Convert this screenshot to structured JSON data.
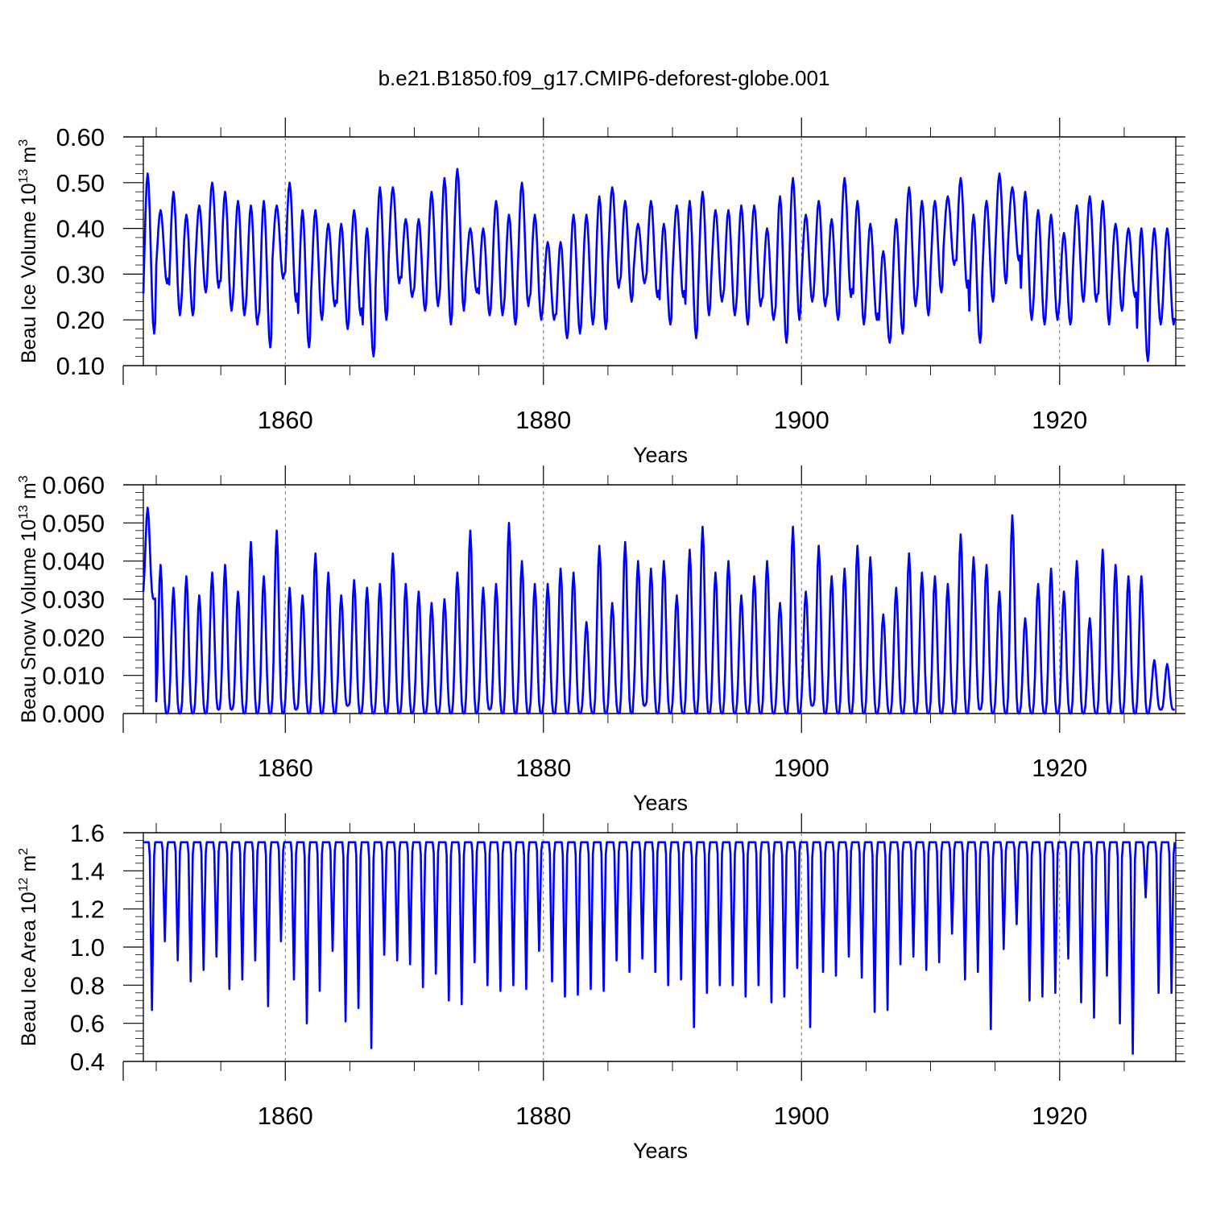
{
  "title": "b.e21.B1850.f09_g17.CMIP6-deforest-globe.001",
  "line_color": "#0000ff",
  "chart_data": [
    {
      "type": "line",
      "name": "ice-volume",
      "ylabel_main": "Beau Ice Volume 10",
      "ylabel_exp": "13",
      "ylabel_unit": " m",
      "ylabel_unit_exp": "3",
      "xlabel": "Years",
      "xlim": [
        1849.0,
        1929.0
      ],
      "ylim": [
        0.1,
        0.6
      ],
      "yticks": [
        0.1,
        0.2,
        0.3,
        0.4,
        0.5,
        0.6
      ],
      "ytick_labels": [
        "0.10",
        "0.20",
        "0.30",
        "0.40",
        "0.50",
        "0.60"
      ],
      "xticks": [
        1860,
        1880,
        1900,
        1920
      ],
      "xtick_labels": [
        "1860",
        "1880",
        "1900",
        "1920"
      ],
      "start_year": 1849.0,
      "annual_max": [
        0.52,
        0.44,
        0.48,
        0.43,
        0.45,
        0.5,
        0.48,
        0.46,
        0.45,
        0.46,
        0.45,
        0.5,
        0.44,
        0.44,
        0.41,
        0.41,
        0.44,
        0.4,
        0.49,
        0.49,
        0.42,
        0.42,
        0.48,
        0.51,
        0.53,
        0.4,
        0.4,
        0.46,
        0.43,
        0.5,
        0.43,
        0.37,
        0.37,
        0.43,
        0.43,
        0.47,
        0.49,
        0.46,
        0.41,
        0.46,
        0.41,
        0.45,
        0.46,
        0.48,
        0.44,
        0.44,
        0.45,
        0.45,
        0.4,
        0.47,
        0.51,
        0.43,
        0.46,
        0.42,
        0.51,
        0.46,
        0.41,
        0.35,
        0.42,
        0.49,
        0.46,
        0.46,
        0.47,
        0.51,
        0.43,
        0.46,
        0.52,
        0.49,
        0.48,
        0.44,
        0.43,
        0.39,
        0.45,
        0.47,
        0.46,
        0.41,
        0.4,
        0.4,
        0.4,
        0.4
      ],
      "annual_min": [
        0.17,
        0.28,
        0.21,
        0.21,
        0.26,
        0.27,
        0.22,
        0.21,
        0.19,
        0.14,
        0.29,
        0.24,
        0.14,
        0.2,
        0.23,
        0.18,
        0.21,
        0.12,
        0.2,
        0.28,
        0.25,
        0.22,
        0.23,
        0.19,
        0.22,
        0.26,
        0.21,
        0.21,
        0.19,
        0.23,
        0.2,
        0.2,
        0.16,
        0.17,
        0.19,
        0.18,
        0.27,
        0.24,
        0.28,
        0.25,
        0.19,
        0.25,
        0.16,
        0.21,
        0.24,
        0.21,
        0.19,
        0.23,
        0.2,
        0.15,
        0.2,
        0.24,
        0.23,
        0.2,
        0.25,
        0.19,
        0.2,
        0.15,
        0.17,
        0.23,
        0.21,
        0.26,
        0.32,
        0.27,
        0.15,
        0.24,
        0.28,
        0.33,
        0.2,
        0.19,
        0.2,
        0.19,
        0.24,
        0.24,
        0.19,
        0.22,
        0.25,
        0.11,
        0.19,
        0.19
      ]
    },
    {
      "type": "line",
      "name": "snow-volume",
      "ylabel_main": "Beau Snow Volume 10",
      "ylabel_exp": "13",
      "ylabel_unit": " m",
      "ylabel_unit_exp": "3",
      "xlabel": "Years",
      "xlim": [
        1849.0,
        1929.0
      ],
      "ylim": [
        0.0,
        0.06
      ],
      "yticks": [
        0.0,
        0.01,
        0.02,
        0.03,
        0.04,
        0.05,
        0.06
      ],
      "ytick_labels": [
        "0.000",
        "0.010",
        "0.020",
        "0.030",
        "0.040",
        "0.050",
        "0.060"
      ],
      "xticks": [
        1860,
        1880,
        1900,
        1920
      ],
      "xtick_labels": [
        "1860",
        "1880",
        "1900",
        "1920"
      ],
      "start_year": 1849.0,
      "annual_max": [
        0.054,
        0.039,
        0.033,
        0.036,
        0.031,
        0.037,
        0.039,
        0.032,
        0.045,
        0.036,
        0.048,
        0.033,
        0.031,
        0.042,
        0.037,
        0.031,
        0.035,
        0.033,
        0.034,
        0.042,
        0.034,
        0.032,
        0.029,
        0.03,
        0.037,
        0.048,
        0.033,
        0.034,
        0.05,
        0.04,
        0.034,
        0.034,
        0.038,
        0.037,
        0.024,
        0.044,
        0.029,
        0.045,
        0.04,
        0.038,
        0.04,
        0.031,
        0.043,
        0.049,
        0.037,
        0.04,
        0.031,
        0.036,
        0.04,
        0.029,
        0.049,
        0.032,
        0.044,
        0.036,
        0.038,
        0.044,
        0.041,
        0.026,
        0.033,
        0.042,
        0.037,
        0.036,
        0.034,
        0.047,
        0.041,
        0.039,
        0.032,
        0.052,
        0.025,
        0.034,
        0.038,
        0.032,
        0.04,
        0.025,
        0.043,
        0.039,
        0.036,
        0.036,
        0.014,
        0.013
      ],
      "annual_min": [
        0.03,
        0.0,
        0.0,
        0.0,
        0.0,
        0.001,
        0.001,
        0.0,
        0.0,
        0.0,
        0.0,
        0.001,
        0.0,
        0.0,
        0.0,
        0.002,
        0.0,
        0.0,
        0.0,
        0.0,
        0.0,
        0.0,
        0.0,
        0.0,
        0.0,
        0.0,
        0.001,
        0.0,
        0.0,
        0.0,
        0.0,
        0.0,
        0.0,
        0.0,
        0.0,
        0.0,
        0.0,
        0.0,
        0.002,
        0.0,
        0.0,
        0.0,
        0.0,
        0.0,
        0.0,
        0.0,
        0.0,
        0.0,
        0.0,
        0.0,
        0.0,
        0.002,
        0.0,
        0.0,
        0.0,
        0.0,
        0.0,
        0.0,
        0.0,
        0.0,
        0.0,
        0.0,
        0.0,
        0.0,
        0.001,
        0.0,
        0.0,
        0.0,
        0.0,
        0.0,
        0.0,
        0.0,
        0.0,
        0.0,
        0.0,
        0.0,
        0.0,
        0.0,
        0.001,
        0.001
      ]
    },
    {
      "type": "line",
      "name": "ice-area",
      "ylabel_main": "Beau Ice Area 10",
      "ylabel_exp": "12",
      "ylabel_unit": " m",
      "ylabel_unit_exp": "2",
      "xlabel": "Years",
      "xlim": [
        1849.0,
        1929.0
      ],
      "ylim": [
        0.4,
        1.6
      ],
      "yticks": [
        0.4,
        0.6,
        0.8,
        1.0,
        1.2,
        1.4,
        1.6
      ],
      "ytick_labels": [
        "0.4",
        "0.6",
        "0.8",
        "1.0",
        "1.2",
        "1.4",
        "1.6"
      ],
      "xticks": [
        1860,
        1880,
        1900,
        1920
      ],
      "xtick_labels": [
        "1860",
        "1880",
        "1900",
        "1920"
      ],
      "start_year": 1849.0,
      "annual_max": [
        1.55,
        1.55,
        1.55,
        1.55,
        1.55,
        1.55,
        1.55,
        1.55,
        1.55,
        1.55,
        1.55,
        1.55,
        1.55,
        1.55,
        1.55,
        1.55,
        1.55,
        1.55,
        1.55,
        1.55,
        1.55,
        1.55,
        1.55,
        1.55,
        1.55,
        1.55,
        1.55,
        1.55,
        1.55,
        1.55,
        1.55,
        1.55,
        1.55,
        1.55,
        1.55,
        1.55,
        1.55,
        1.55,
        1.55,
        1.55,
        1.55,
        1.55,
        1.55,
        1.55,
        1.55,
        1.55,
        1.55,
        1.55,
        1.55,
        1.55,
        1.55,
        1.55,
        1.55,
        1.55,
        1.55,
        1.55,
        1.55,
        1.55,
        1.55,
        1.55,
        1.55,
        1.55,
        1.55,
        1.55,
        1.55,
        1.55,
        1.55,
        1.55,
        1.55,
        1.55,
        1.55,
        1.55,
        1.55,
        1.55,
        1.55,
        1.55,
        1.55,
        1.55,
        1.55,
        1.55
      ],
      "annual_min": [
        0.67,
        1.03,
        0.93,
        0.82,
        0.88,
        0.95,
        0.78,
        0.83,
        0.93,
        0.69,
        1.03,
        0.83,
        0.6,
        0.77,
        0.98,
        0.61,
        0.68,
        0.47,
        0.96,
        0.93,
        0.91,
        0.79,
        0.86,
        0.72,
        0.7,
        0.92,
        0.8,
        0.77,
        0.8,
        0.78,
        0.98,
        0.82,
        0.74,
        0.75,
        0.78,
        0.77,
        0.93,
        0.87,
        0.94,
        0.87,
        0.8,
        0.83,
        0.58,
        0.76,
        0.8,
        0.8,
        0.74,
        0.8,
        0.71,
        0.74,
        0.89,
        0.58,
        0.87,
        0.85,
        0.95,
        0.84,
        0.66,
        0.67,
        0.91,
        0.95,
        0.88,
        0.92,
        1.07,
        0.83,
        0.87,
        0.57,
        0.99,
        1.12,
        0.72,
        0.74,
        0.76,
        0.94,
        0.71,
        0.63,
        0.85,
        0.6,
        0.44,
        1.26,
        0.76,
        0.76
      ]
    }
  ]
}
